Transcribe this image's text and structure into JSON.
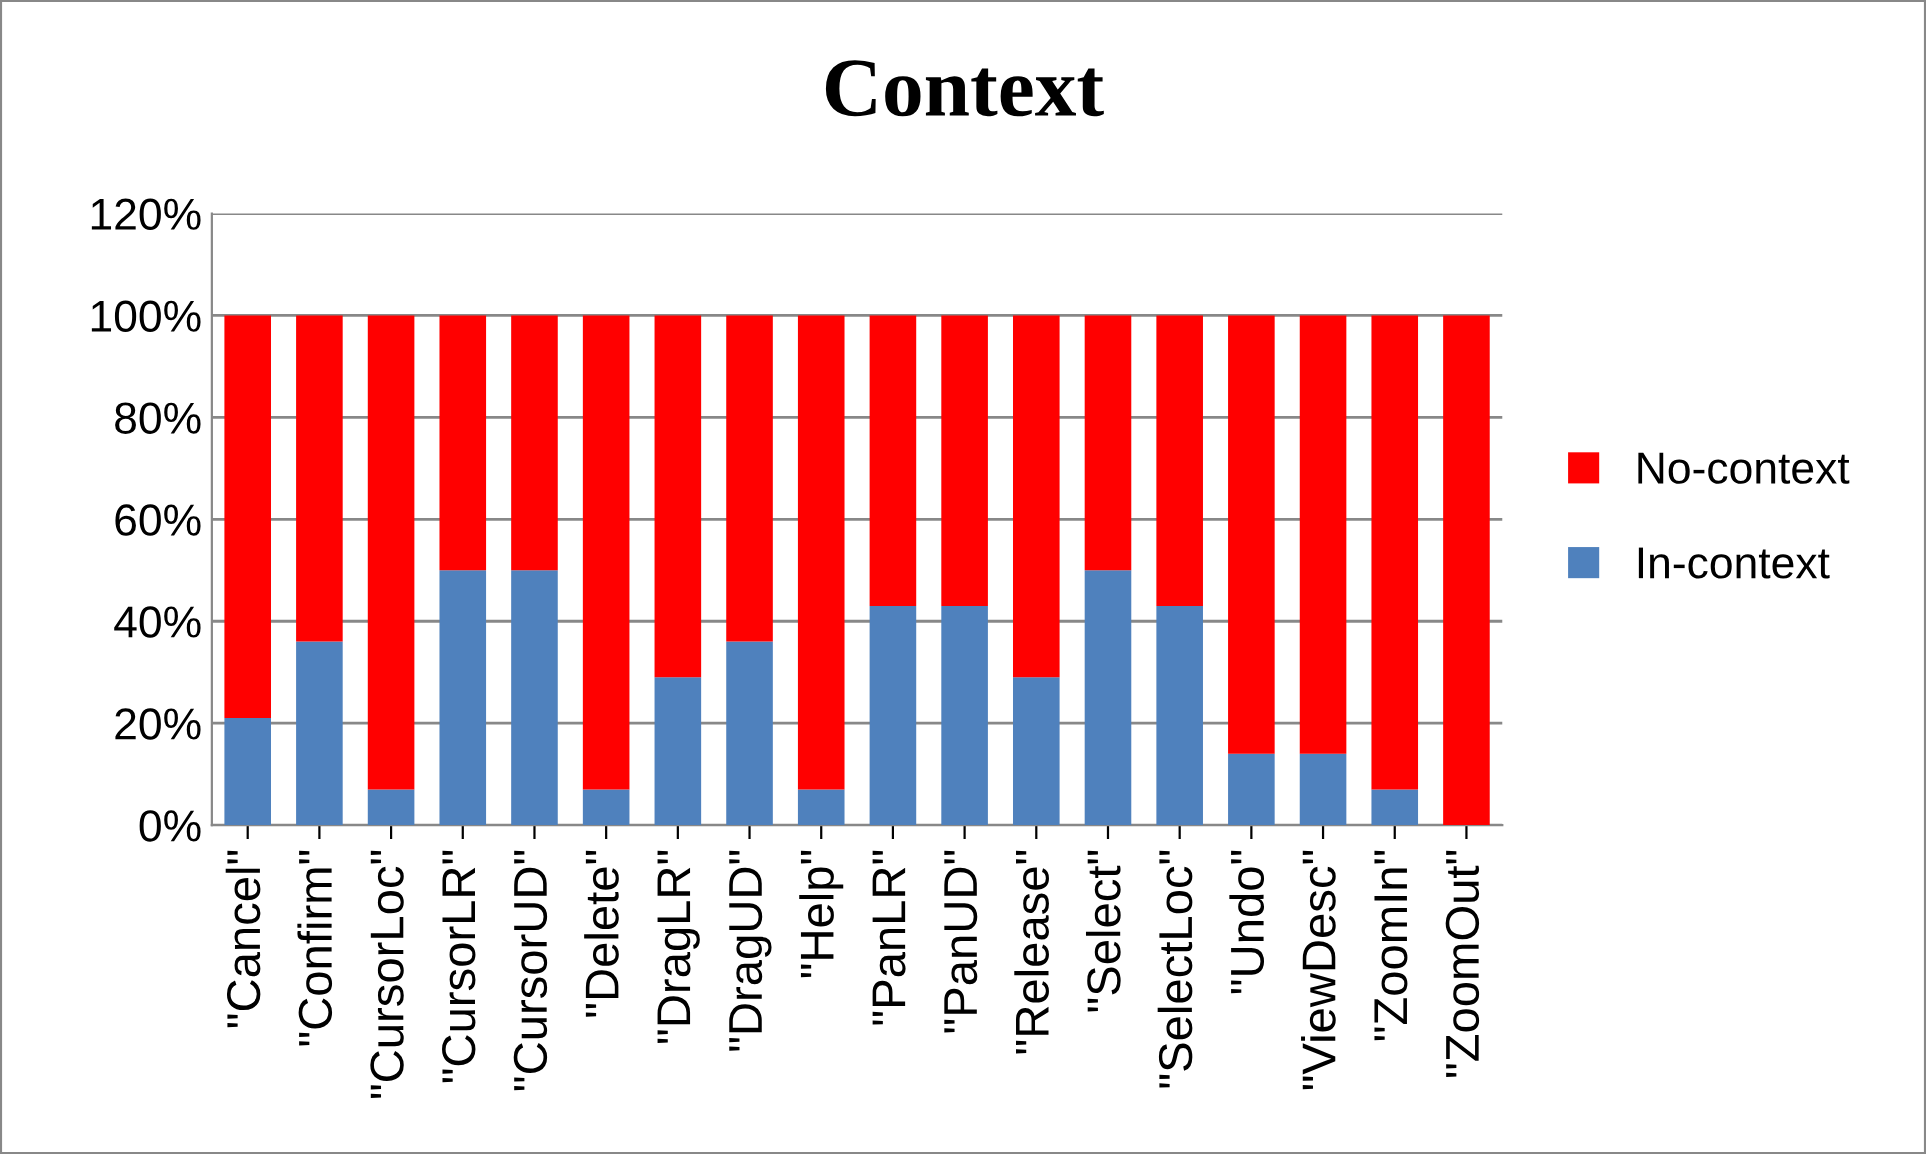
{
  "chart_data": {
    "type": "bar",
    "title": "Context",
    "stacked": true,
    "categories": [
      "\"Cancel\"",
      "\"Confirm\"",
      "\"CursorLoc\"",
      "\"CursorLR\"",
      "\"CursorUD\"",
      "\"Delete\"",
      "\"DragLR\"",
      "\"DragUD\"",
      "\"Help\"",
      "\"PanLR\"",
      "\"PanUD\"",
      "\"Release\"",
      "\"Select\"",
      "\"SelectLoc\"",
      "\"Undo\"",
      "\"ViewDesc\"",
      "\"ZoomIn\"",
      "\"ZoomOut\""
    ],
    "series": [
      {
        "name": "In-context",
        "color": "#4f81bd",
        "values": [
          21,
          36,
          7,
          50,
          50,
          7,
          29,
          36,
          7,
          43,
          43,
          29,
          50,
          43,
          14,
          14,
          7,
          0
        ]
      },
      {
        "name": "No-context",
        "color": "#ff0000",
        "values": [
          79,
          64,
          93,
          50,
          50,
          93,
          71,
          64,
          93,
          57,
          57,
          71,
          50,
          57,
          86,
          86,
          93,
          100
        ]
      }
    ],
    "ylim": [
      0,
      120
    ],
    "yticks": [
      {
        "value": 0,
        "label": "0%"
      },
      {
        "value": 20,
        "label": "20%"
      },
      {
        "value": 40,
        "label": "40%"
      },
      {
        "value": 60,
        "label": "60%"
      },
      {
        "value": 80,
        "label": "80%"
      },
      {
        "value": 100,
        "label": "100%"
      },
      {
        "value": 120,
        "label": "120%"
      }
    ],
    "grid": "y",
    "legend": "right"
  }
}
